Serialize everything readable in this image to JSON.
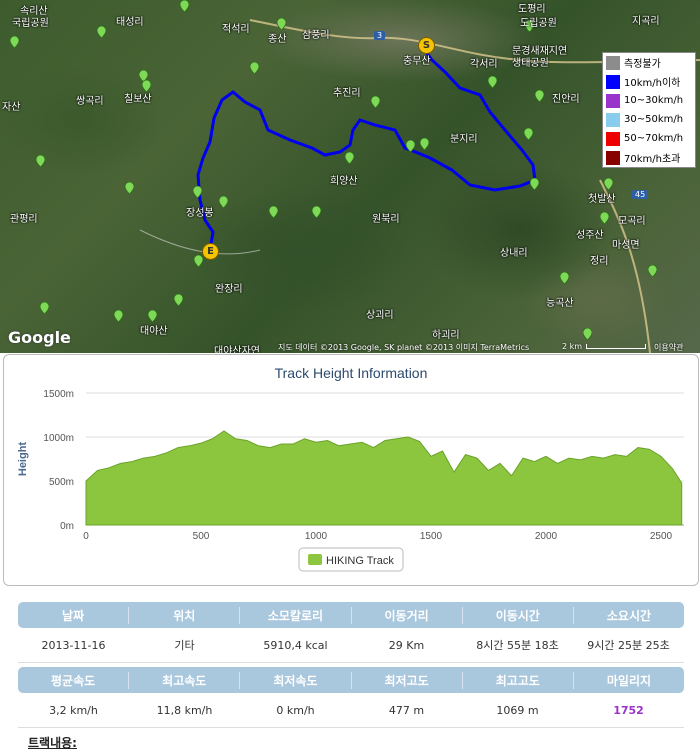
{
  "map": {
    "places": [
      "속리산",
      "국립공원",
      "태성리",
      "적석리",
      "종산",
      "삼풍리",
      "도평리",
      "도립공원",
      "지곡리",
      "자산",
      "쌍곡리",
      "칠보산",
      "추진리",
      "충무산",
      "각서리",
      "문경새재지연",
      "생태공원",
      "진안리",
      "분지리",
      "관평리",
      "장성봉",
      "희양산",
      "원북리",
      "상내리",
      "성주산",
      "모곡리",
      "마성면",
      "정리",
      "완장리",
      "능곡산",
      "상괴리",
      "하괴리",
      "대야산",
      "대야산자연",
      "첫발산"
    ],
    "legend": [
      {
        "label": "측정불가",
        "color": "#8c8c8c"
      },
      {
        "label": "10km/h이하",
        "color": "#0000ff"
      },
      {
        "label": "10~30km/h",
        "color": "#9933cc"
      },
      {
        "label": "30~50km/h",
        "color": "#88ccee"
      },
      {
        "label": "50~70km/h",
        "color": "#ee0000"
      },
      {
        "label": "70km/h초과",
        "color": "#880000"
      }
    ],
    "start_marker": "S",
    "end_marker": "E",
    "road_number": "3",
    "road_number_2": "45",
    "google": "Google",
    "copyright": "지도 데이터 ©2013 Google, SK planet ©2013 이미지 TerraMetrics",
    "scale": "2 km",
    "terms": "이용약관"
  },
  "chart": {
    "title": "Track Height Information",
    "ylabel": "Height",
    "legend": "HIKING Track",
    "series_color": "#8cc63f"
  },
  "chart_data": {
    "type": "area",
    "title": "Track Height Information",
    "xlabel": "",
    "ylabel": "Height",
    "xlim": [
      0,
      2600
    ],
    "ylim": [
      0,
      1500
    ],
    "xticks": [
      "0",
      "500",
      "1000",
      "1500",
      "2000",
      "2500"
    ],
    "yticks": [
      "0m",
      "500m",
      "1000m",
      "1500m"
    ],
    "series": [
      {
        "name": "HIKING Track",
        "x": [
          0,
          50,
          100,
          150,
          200,
          250,
          300,
          350,
          400,
          450,
          500,
          550,
          600,
          650,
          700,
          750,
          800,
          850,
          900,
          950,
          1000,
          1050,
          1100,
          1150,
          1200,
          1250,
          1300,
          1350,
          1400,
          1450,
          1500,
          1550,
          1600,
          1650,
          1700,
          1750,
          1800,
          1850,
          1900,
          1950,
          2000,
          2050,
          2100,
          2150,
          2200,
          2250,
          2300,
          2350,
          2400,
          2450,
          2500,
          2550,
          2590
        ],
        "values": [
          500,
          620,
          650,
          700,
          720,
          760,
          780,
          820,
          880,
          900,
          930,
          980,
          1069,
          980,
          960,
          900,
          880,
          920,
          920,
          980,
          940,
          960,
          900,
          920,
          940,
          880,
          960,
          980,
          1000,
          950,
          780,
          840,
          600,
          800,
          760,
          620,
          700,
          560,
          760,
          720,
          780,
          700,
          760,
          740,
          780,
          760,
          800,
          780,
          880,
          860,
          780,
          640,
          477
        ]
      }
    ]
  },
  "stats": {
    "row1_headers": [
      "날짜",
      "위치",
      "소모칼로리",
      "이동거리",
      "이동시간",
      "소요시간"
    ],
    "row1_values": [
      "2013-11-16",
      "기타",
      "5910,4 kcal",
      "29 Km",
      "8시간 55분 18초",
      "9시간 25분 25초"
    ],
    "row2_headers": [
      "평균속도",
      "최고속도",
      "최저속도",
      "최저고도",
      "최고고도",
      "마일리지"
    ],
    "row2_values": [
      "3,2 km/h",
      "11,8 km/h",
      "0 km/h",
      "477 m",
      "1069 m",
      "1752"
    ],
    "mileage_color": "#9933cc",
    "track_label": "트랙내용:"
  }
}
